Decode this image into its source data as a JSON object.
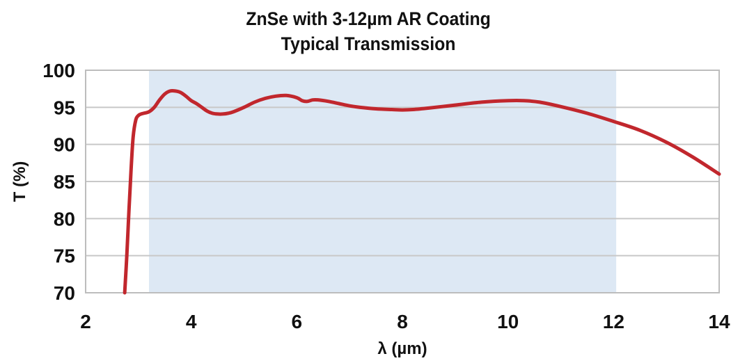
{
  "chart_data": {
    "type": "line",
    "title": [
      "ZnSe with 3-12µm AR Coating",
      "Typical Transmission"
    ],
    "xlabel": "λ (µm)",
    "ylabel": "T (%)",
    "xlim": [
      2,
      14
    ],
    "ylim": [
      70,
      100
    ],
    "xticks": [
      "2",
      "4",
      "6",
      "8",
      "10",
      "12",
      "14"
    ],
    "yticks": [
      "70",
      "75",
      "80",
      "85",
      "90",
      "95",
      "100"
    ],
    "grid": "horizontal",
    "shaded_band": {
      "x_start": 3.2,
      "x_end": 12.05
    },
    "colors": {
      "line": "#c1272d",
      "band": "#dde8f4",
      "grid": "#c8c8c8",
      "axis": "#bdbdbd",
      "text": "#111111"
    },
    "series": [
      {
        "x": [
          2.74,
          2.78,
          2.82,
          2.86,
          2.9,
          2.95,
          3.0,
          3.05,
          3.1,
          3.2,
          3.3,
          3.4,
          3.5,
          3.6,
          3.7,
          3.8,
          3.9,
          4.0,
          4.1,
          4.2,
          4.3,
          4.4,
          4.5,
          4.6,
          4.7,
          4.8,
          5.0,
          5.2,
          5.4,
          5.6,
          5.8,
          6.0,
          6.1,
          6.2,
          6.3,
          6.4,
          6.6,
          6.8,
          7.0,
          7.2,
          7.5,
          7.8,
          8.0,
          8.2,
          8.5,
          9.0,
          9.5,
          10.0,
          10.3,
          10.6,
          11.0,
          11.5,
          12.0,
          12.5,
          13.0,
          13.5,
          14.0
        ],
        "y": [
          70.0,
          75.0,
          81.0,
          86.5,
          91.0,
          93.3,
          93.9,
          94.1,
          94.2,
          94.4,
          95.0,
          96.0,
          96.8,
          97.2,
          97.2,
          97.0,
          96.5,
          95.9,
          95.5,
          95.0,
          94.5,
          94.2,
          94.1,
          94.1,
          94.2,
          94.4,
          95.0,
          95.7,
          96.2,
          96.5,
          96.6,
          96.3,
          95.9,
          95.8,
          96.0,
          96.0,
          95.8,
          95.5,
          95.2,
          95.0,
          94.8,
          94.7,
          94.65,
          94.7,
          94.9,
          95.3,
          95.7,
          95.9,
          95.9,
          95.7,
          95.1,
          94.2,
          93.1,
          91.9,
          90.3,
          88.3,
          86.0
        ]
      }
    ]
  }
}
